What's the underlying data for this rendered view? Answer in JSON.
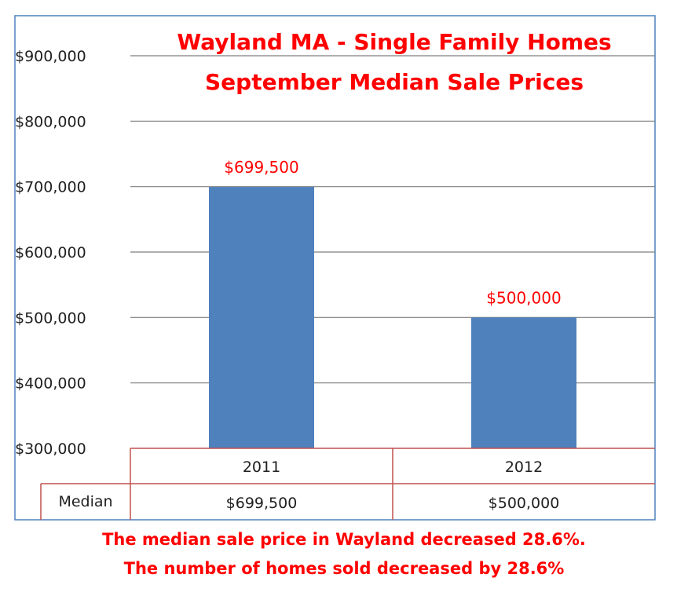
{
  "chart_data": {
    "type": "bar",
    "title": [
      "Wayland MA - Single Family Homes",
      "September Median Sale Prices"
    ],
    "categories": [
      "2011",
      "2012"
    ],
    "values": [
      699500,
      500000
    ],
    "data_labels": [
      "$699,500",
      "$500,000"
    ],
    "ylim": [
      300000,
      900000
    ],
    "yticks": [
      300000,
      400000,
      500000,
      600000,
      700000,
      800000,
      900000
    ],
    "ytick_labels": [
      "$300,000",
      "$400,000",
      "$500,000",
      "$600,000",
      "$700,000",
      "$800,000",
      "$900,000"
    ],
    "grid": true,
    "legend": "none",
    "data_table": {
      "row_label": "Median",
      "values": [
        "$699,500",
        "$500,000"
      ]
    }
  },
  "notes": [
    "The median sale price in Wayland decreased 28.6%.",
    "The number of homes sold decreased by 28.6%"
  ],
  "colors": {
    "bar": "#4f81bd",
    "title": "#ff0000",
    "data_label": "#ff0000",
    "note": "#ff0000",
    "table_border": "#c0504d",
    "frame": "#4f81bd",
    "gridline": "#7f7f7f",
    "text": "#1f1f1f"
  }
}
